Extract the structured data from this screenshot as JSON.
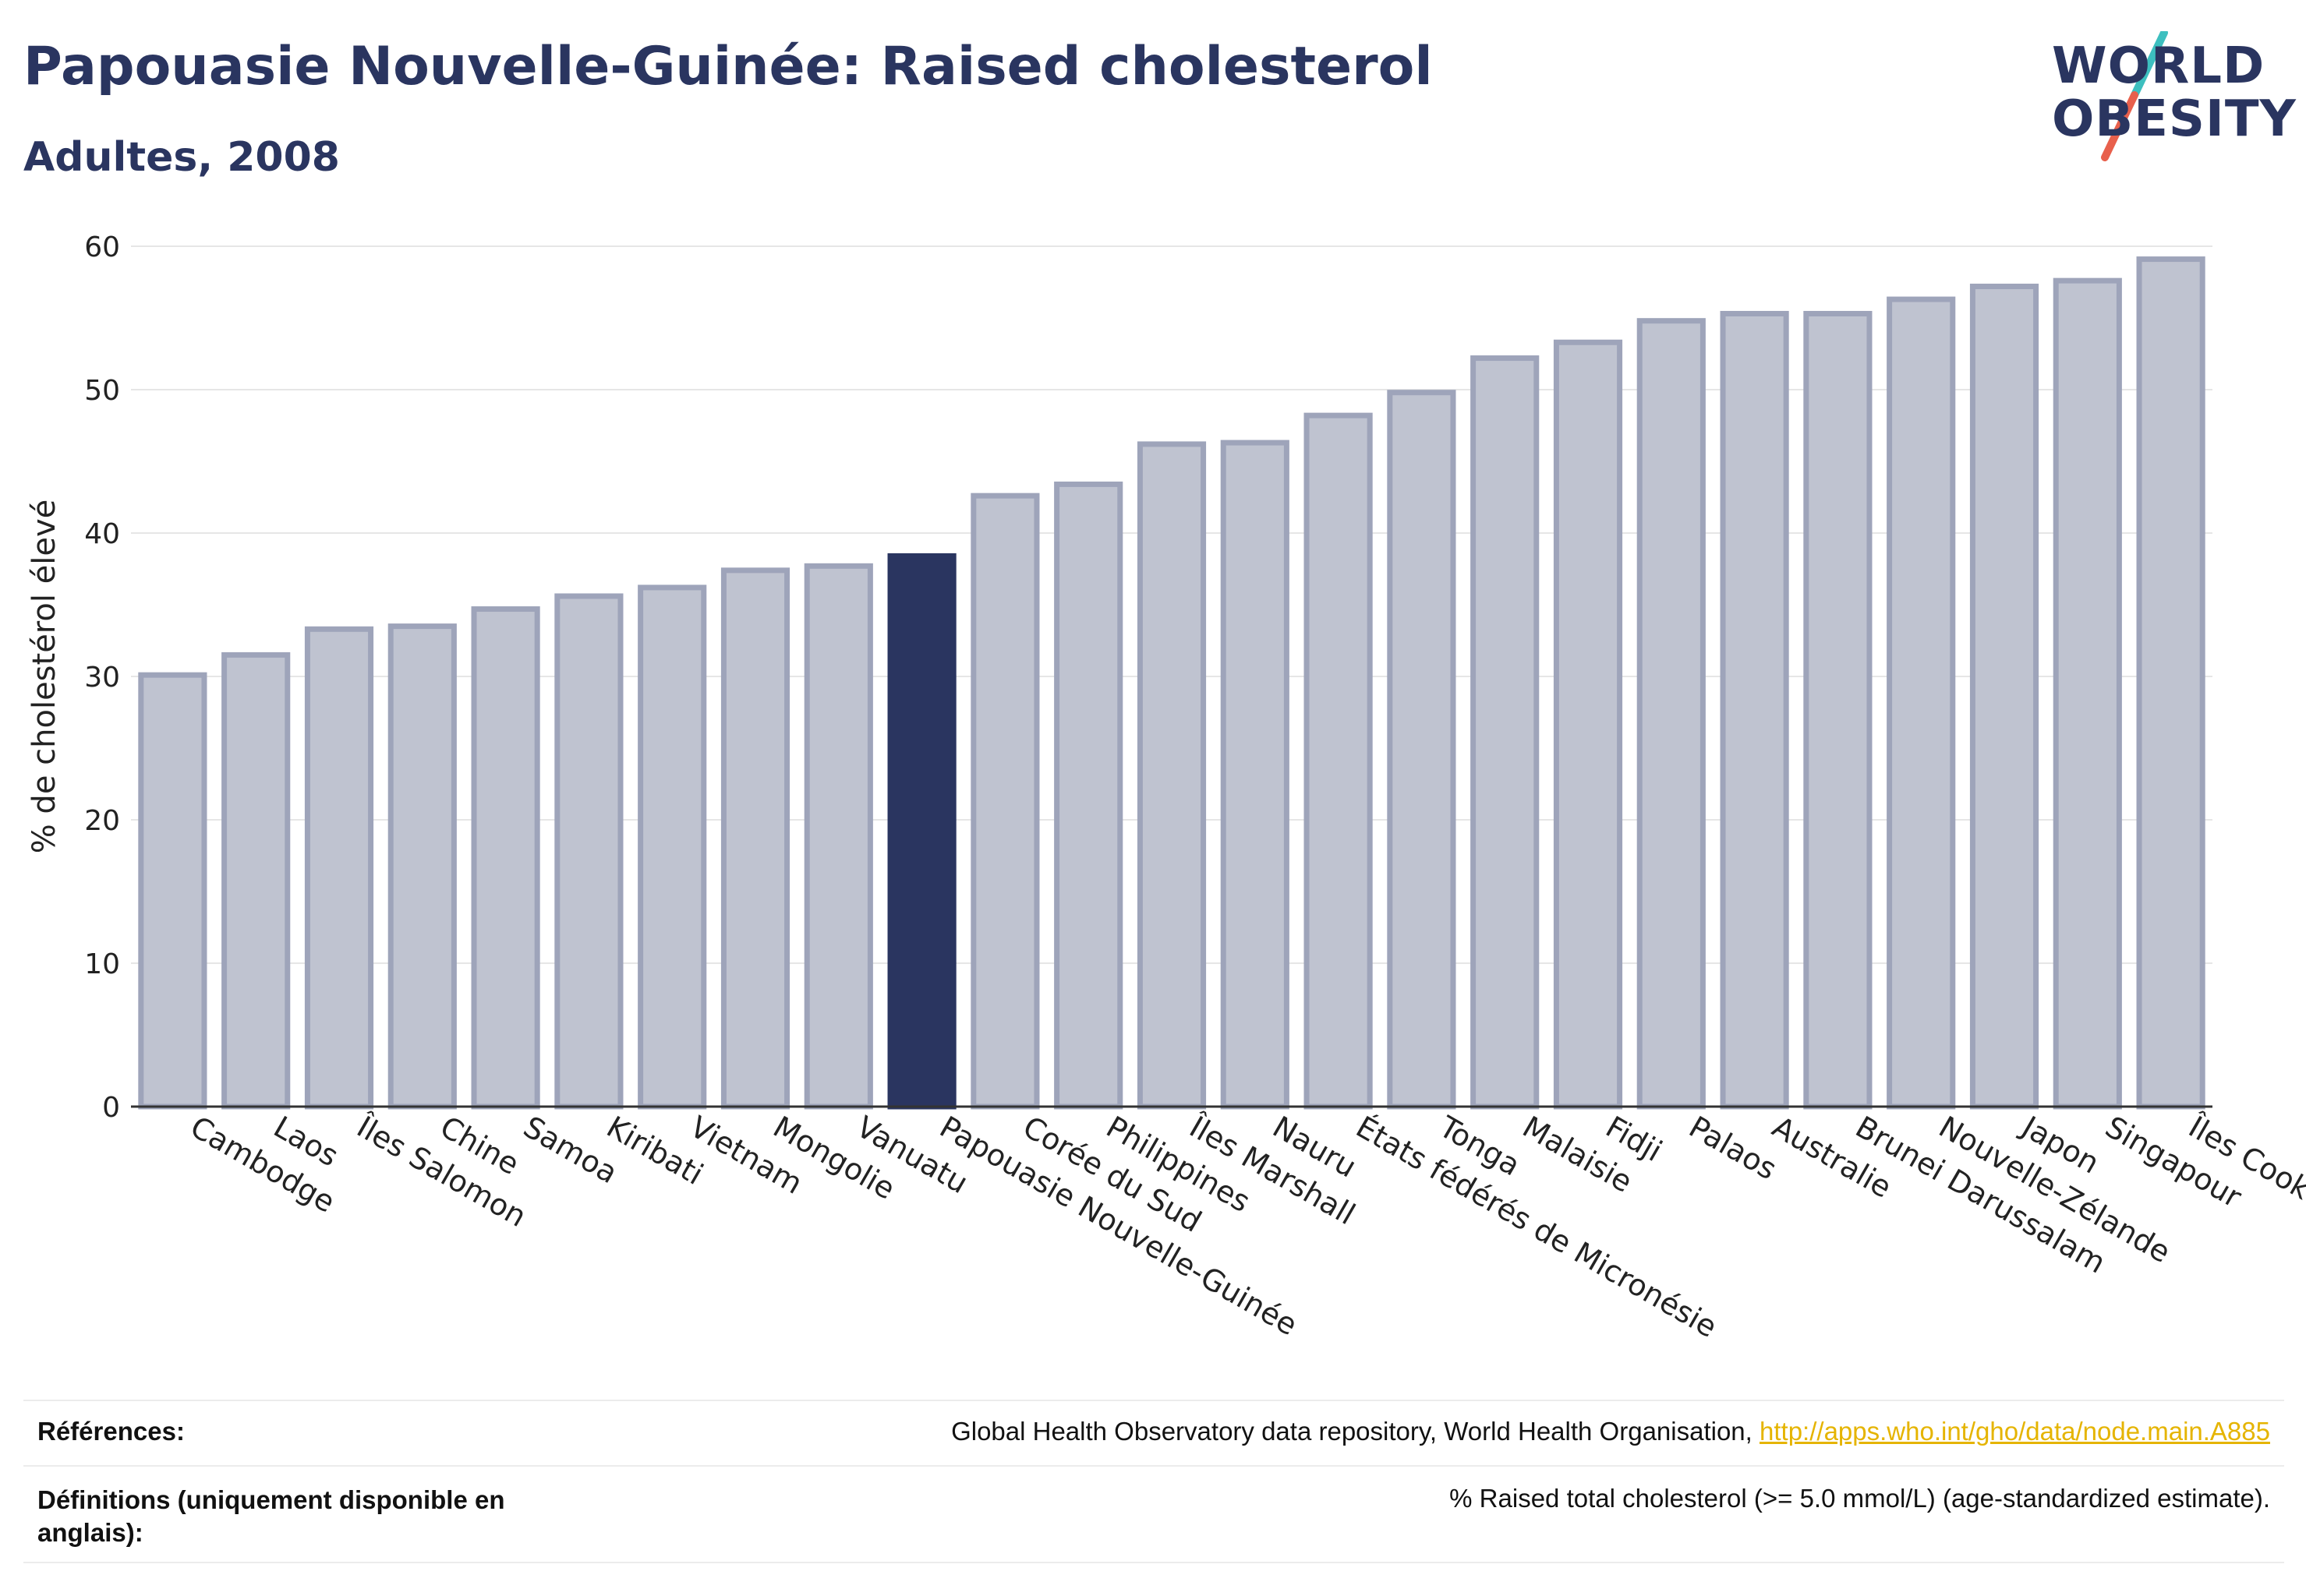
{
  "title": "Papouasie Nouvelle-Guinée: Raised cholesterol",
  "subtitle": "Adultes, 2008",
  "logo": {
    "line1": "WORLD",
    "line2": "OBESITY",
    "accent1": "#3dbfbf",
    "accent2": "#e8604c"
  },
  "chart_data": {
    "type": "bar",
    "ylabel": "% de cholestérol élevé",
    "ylim": [
      0,
      60
    ],
    "yticks": [
      0,
      10,
      20,
      30,
      40,
      50,
      60
    ],
    "grid": true,
    "highlight": "Papouasie Nouvelle-Guinée",
    "colors": {
      "bar": "#bfc3d0",
      "bar_edge": "#9ea4ba",
      "highlight": "#2a3560"
    },
    "categories": [
      "Cambodge",
      "Laos",
      "Îles Salomon",
      "Chine",
      "Samoa",
      "Kiribati",
      "Vietnam",
      "Mongolie",
      "Vanuatu",
      "Papouasie Nouvelle-Guinée",
      "Corée du Sud",
      "Philippines",
      "Îles Marshall",
      "Nauru",
      "États fédérés de Micronésie",
      "Tonga",
      "Malaisie",
      "Fidji",
      "Palaos",
      "Australie",
      "Brunei Darussalam",
      "Nouvelle-Zélande",
      "Japon",
      "Singapour",
      "Îles Cook"
    ],
    "values": [
      30.1,
      31.5,
      33.3,
      33.5,
      34.7,
      35.6,
      36.2,
      37.4,
      37.7,
      38.4,
      42.6,
      43.4,
      46.2,
      46.3,
      48.2,
      49.8,
      52.2,
      53.3,
      54.8,
      55.3,
      55.3,
      56.3,
      57.2,
      57.6,
      59.1
    ]
  },
  "footer": {
    "references_label": "Références:",
    "references_text": "Global Health Observatory data repository, World Health Organisation, ",
    "references_link": "http://apps.who.int/gho/data/node.main.A885",
    "definitions_label": "Définitions (uniquement disponible en anglais):",
    "definitions_text": "% Raised total cholesterol (>= 5.0 mmol/L) (age-standardized estimate)."
  }
}
